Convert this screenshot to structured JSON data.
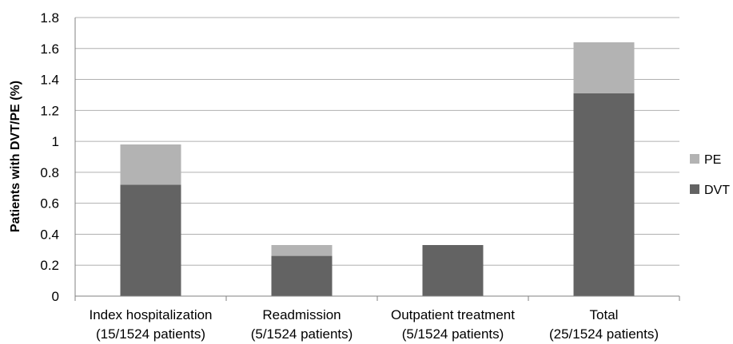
{
  "chart_data": {
    "type": "bar",
    "stacked": true,
    "categories": [
      [
        "Index hospitalization",
        "(15/1524 patients)"
      ],
      [
        "Readmission",
        "(5/1524 patients)"
      ],
      [
        "Outpatient treatment",
        "(5/1524 patients)"
      ],
      [
        "Total",
        "(25/1524 patients)"
      ]
    ],
    "series": [
      {
        "name": "DVT",
        "color": "#636363",
        "values": [
          0.72,
          0.26,
          0.33,
          1.31
        ]
      },
      {
        "name": "PE",
        "color": "#b3b3b3",
        "values": [
          0.26,
          0.07,
          0.0,
          0.33
        ]
      }
    ],
    "ylabel": "Patients with DVT/PE (%)",
    "xlabel": "",
    "ylim": [
      0,
      1.8
    ],
    "yticks": [
      "0",
      "0.2",
      "0.4",
      "0.6",
      "0.8",
      "1",
      "1.2",
      "1.4",
      "1.6",
      "1.8"
    ],
    "grid": true,
    "legend": {
      "position": "right",
      "order": [
        "PE",
        "DVT"
      ]
    },
    "gridColor": "#b0b0b0"
  }
}
